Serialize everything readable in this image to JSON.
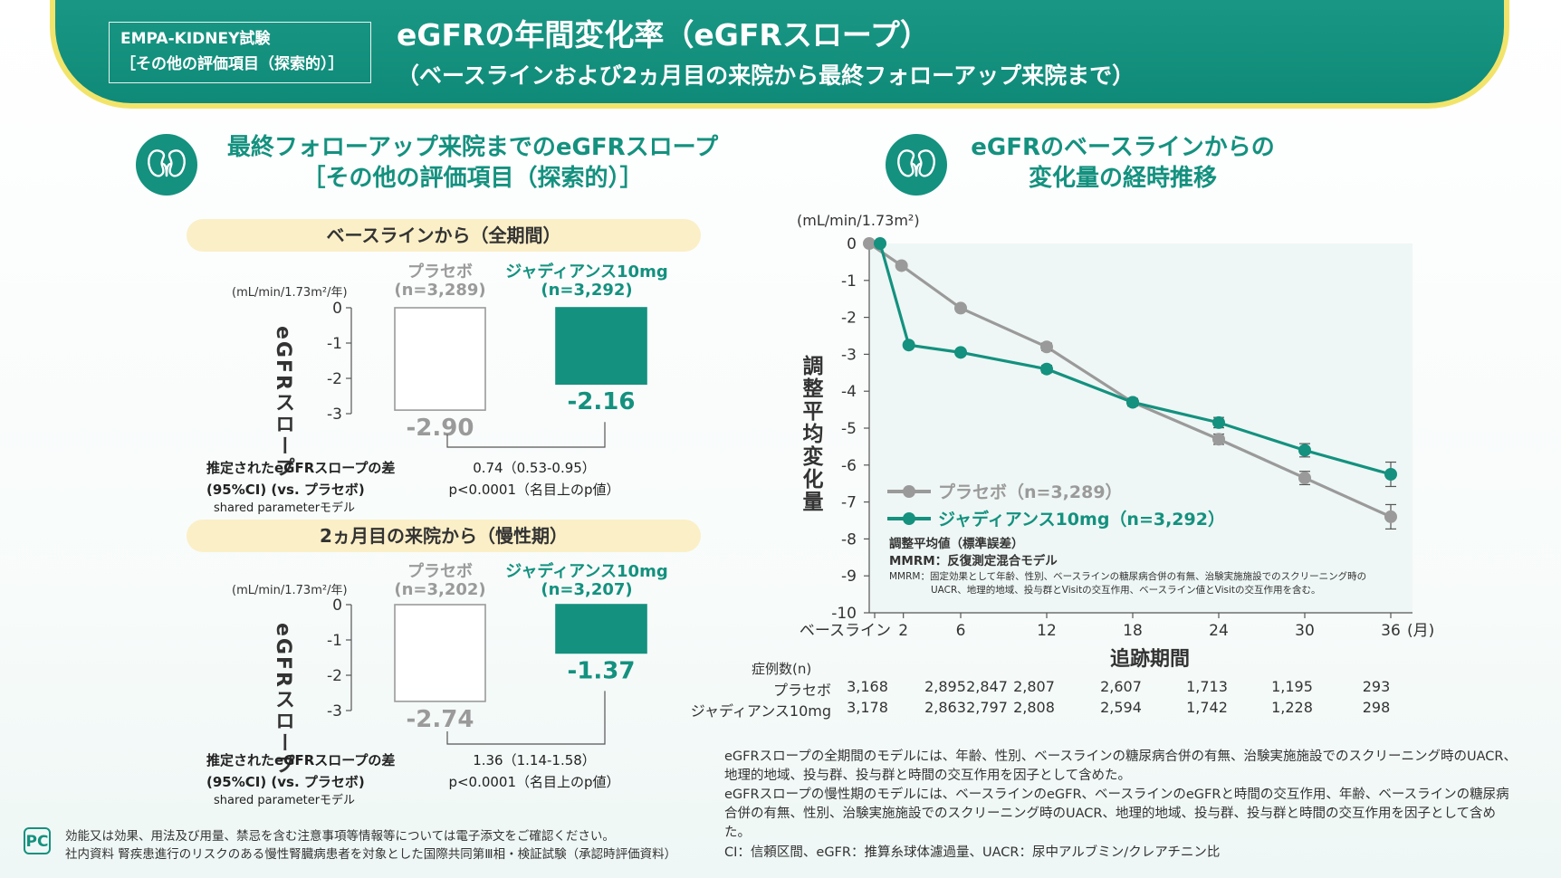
{
  "header": {
    "study_line1": "EMPA-KIDNEY試験",
    "study_line2": "［その他の評価項目（探索的）］",
    "title": "eGFRの年間変化率（eGFRスロープ）",
    "subtitle": "（ベースラインおよび2ヵ月目の来院から最終フォローアップ来院まで）"
  },
  "left": {
    "section_title_line1": "最終フォローアップ来院までのeGFRスロープ",
    "section_title_line2": "［その他の評価項目（探索的）］",
    "ylabel": "eGFRスロープ",
    "panels": [
      {
        "pill": "ベースラインから（全期間）",
        "unit": "(mL/min/1.73m²/年)",
        "placebo_label": "プラセボ",
        "placebo_n": "(n=3,289)",
        "jardiance_label": "ジャディアンス10mg",
        "jardiance_n": "(n=3,292)",
        "diff_label_line1": "推定されたeGFRスロープの差",
        "diff_label_line2": "(95%CI) (vs. プラセボ)",
        "model": "shared parameterモデル",
        "diff_value": "0.74（0.53-0.95）",
        "p_value": "p<0.0001（名目上のp値）"
      },
      {
        "pill": "2ヵ月目の来院から（慢性期）",
        "unit": "(mL/min/1.73m²/年)",
        "placebo_label": "プラセボ",
        "placebo_n": "(n=3,202)",
        "jardiance_label": "ジャディアンス10mg",
        "jardiance_n": "(n=3,207)",
        "diff_label_line1": "推定されたeGFRスロープの差",
        "diff_label_line2": "(95%CI) (vs. プラセボ)",
        "model": "shared parameterモデル",
        "diff_value": "1.36（1.14-1.58）",
        "p_value": "p<0.0001（名目上のp値）"
      }
    ]
  },
  "right": {
    "section_title_line1": "eGFRのベースラインからの",
    "section_title_line2": "変化量の経時推移",
    "ylabel": "調整平均変化量",
    "xlabel": "追跡期間",
    "legend_note1": "調整平均値（標準誤差）",
    "legend_note2": "MMRM：反復測定混合モデル",
    "mmrm_note1": "MMRM：固定効果として年齢、性別、ベースラインの糖尿病合併の有無、治験実施施設でのスクリーニング時の",
    "mmrm_note2": "UACR、地理的地域、投与群とVisitの交互作用、ベースライン値とVisitの交互作用を含む。",
    "n_header": "症例数(n)",
    "n_rows": [
      {
        "label": "プラセボ",
        "values": [
          "3,168",
          "2,895",
          "2,847",
          "2,807",
          "2,607",
          "1,713",
          "1,195",
          "293"
        ]
      },
      {
        "label": "ジャディアンス10mg",
        "values": [
          "3,178",
          "2,863",
          "2,797",
          "2,808",
          "2,594",
          "1,742",
          "1,228",
          "298"
        ]
      }
    ]
  },
  "notes": [
    "eGFRスロープの全期間のモデルには、年齢、性別、ベースラインの糖尿病合併の有無、治験実施施設でのスクリーニング時のUACR、地理的地域、投与群、投与群と時間の交互作用を因子として含めた。",
    "eGFRスロープの慢性期のモデルには、ベースラインのeGFR、ベースラインのeGFRと時間の交互作用、年齢、ベースラインの糖尿病合併の有無、性別、治験実施施設でのスクリーニング時のUACR、地理的地域、投与群、投与群と時間の交互作用を因子として含めた。",
    "CI：信頼区間、eGFR：推算糸球体濾過量、UACR：尿中アルブミン/クレアチニン比"
  ],
  "footer": {
    "logo": "PC",
    "line1": "効能又は効果、用法及び用量、禁忌を含む注意事項等情報等については電子添文をご確認ください。",
    "line2": "社内資料 腎疾患進行のリスクのある慢性腎臓病患者を対象とした国際共同第Ⅲ相・検証試験（承認時評価資料）"
  },
  "colors": {
    "teal": "#14917f",
    "grey": "#9a9a9a",
    "yellow": "#f2e46b",
    "pill": "#fbefc7"
  },
  "chart_data": [
    {
      "type": "bar",
      "title": "ベースラインから（全期間）",
      "ylabel": "eGFRスロープ (mL/min/1.73m²/年)",
      "categories": [
        "プラセボ",
        "ジャディアンス10mg"
      ],
      "values": [
        -2.9,
        -2.16
      ],
      "labels": [
        "-2.90",
        "-2.16"
      ],
      "ylim": [
        -3,
        0
      ],
      "yticks": [
        "0",
        "-1",
        "-2",
        "-3"
      ]
    },
    {
      "type": "bar",
      "title": "2ヵ月目の来院から（慢性期）",
      "ylabel": "eGFRスロープ (mL/min/1.73m²/年)",
      "categories": [
        "プラセボ",
        "ジャディアンス10mg"
      ],
      "values": [
        -2.74,
        -1.37
      ],
      "labels": [
        "-2.74",
        "-1.37"
      ],
      "ylim": [
        -3,
        0
      ],
      "yticks": [
        "0",
        "-1",
        "-2",
        "-3"
      ]
    },
    {
      "type": "line",
      "title": "eGFRのベースラインからの変化量の経時推移",
      "ylabel": "調整平均変化量",
      "yunit": "(mL/min/1.73m²)",
      "xlabel": "追跡期間",
      "x": [
        0,
        2,
        6,
        12,
        18,
        24,
        30,
        36
      ],
      "xticks": [
        "ベースライン",
        "2",
        "6",
        "12",
        "18",
        "24",
        "30",
        "36"
      ],
      "xunit": "(月)",
      "ylim": [
        -10,
        0
      ],
      "yticks": [
        "0",
        "-1",
        "-2",
        "-3",
        "-4",
        "-5",
        "-6",
        "-7",
        "-8",
        "-9",
        "-10"
      ],
      "series": [
        {
          "name": "プラセボ（n=3,289）",
          "color": "#9a9a9a",
          "values": [
            0,
            -0.6,
            -1.75,
            -2.8,
            -4.3,
            -5.3,
            -6.35,
            -7.4
          ],
          "err": [
            0,
            0.05,
            0.08,
            0.1,
            0.1,
            0.14,
            0.18,
            0.33
          ]
        },
        {
          "name": "ジャディアンス10mg（n=3,292）",
          "color": "#14917f",
          "values": [
            0,
            -2.75,
            -2.95,
            -3.4,
            -4.3,
            -4.85,
            -5.6,
            -6.25
          ],
          "err": [
            0,
            0.05,
            0.08,
            0.1,
            0.1,
            0.14,
            0.18,
            0.33
          ]
        }
      ]
    }
  ]
}
